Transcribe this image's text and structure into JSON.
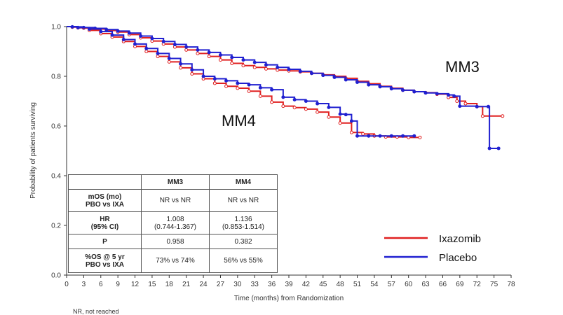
{
  "chart_data": {
    "type": "line",
    "xlabel": "Time (months) from Randomization",
    "ylabel": "Probability of patients surviving",
    "xlim": [
      0,
      78
    ],
    "ylim": [
      0,
      1.0
    ],
    "xticks": [
      0,
      3,
      6,
      9,
      12,
      15,
      18,
      21,
      24,
      27,
      30,
      33,
      36,
      39,
      42,
      45,
      48,
      51,
      54,
      57,
      60,
      63,
      66,
      69,
      72,
      75,
      78
    ],
    "yticks": [
      0.0,
      0.2,
      0.4,
      0.6,
      0.8,
      1.0
    ],
    "ytick_labels": [
      "0.0",
      "0.2",
      "0.4",
      "0.6",
      "0.8",
      "1.0"
    ],
    "annotations": [
      "MM3",
      "MM4"
    ],
    "legend": [
      {
        "name": "Ixazomib",
        "color": "#e02020"
      },
      {
        "name": "Placebo",
        "color": "#2020d0"
      }
    ],
    "series": [
      {
        "name": "MM3 Ixazomib",
        "color": "#e02020",
        "x": [
          0,
          1,
          3,
          5,
          7,
          9,
          11,
          13,
          15,
          17,
          19,
          21,
          23,
          25,
          27,
          29,
          31,
          33,
          35,
          37,
          39,
          41,
          43,
          45,
          47,
          49,
          51,
          53,
          55,
          57,
          59,
          61,
          63,
          65,
          67,
          68.5,
          70,
          72,
          73,
          76.5
        ],
        "y": [
          1.0,
          0.998,
          0.994,
          0.99,
          0.984,
          0.978,
          0.968,
          0.955,
          0.942,
          0.93,
          0.918,
          0.906,
          0.892,
          0.88,
          0.866,
          0.852,
          0.843,
          0.836,
          0.83,
          0.825,
          0.822,
          0.818,
          0.812,
          0.806,
          0.8,
          0.792,
          0.78,
          0.77,
          0.76,
          0.752,
          0.744,
          0.738,
          0.734,
          0.728,
          0.715,
          0.7,
          0.69,
          0.678,
          0.64,
          0.64
        ]
      },
      {
        "name": "MM3 Placebo",
        "color": "#2020d0",
        "x": [
          0,
          1,
          3,
          5,
          7,
          9,
          11,
          13,
          15,
          17,
          19,
          21,
          23,
          25,
          27,
          29,
          31,
          33,
          35,
          37,
          39,
          41,
          43,
          45,
          47,
          49,
          51,
          53,
          55,
          57,
          59,
          61,
          63,
          65,
          67,
          68,
          69,
          72,
          74,
          74.2,
          75.8
        ],
        "y": [
          1.0,
          0.999,
          0.996,
          0.993,
          0.988,
          0.982,
          0.974,
          0.962,
          0.952,
          0.94,
          0.928,
          0.918,
          0.906,
          0.896,
          0.886,
          0.876,
          0.866,
          0.856,
          0.846,
          0.836,
          0.828,
          0.82,
          0.812,
          0.804,
          0.796,
          0.786,
          0.776,
          0.766,
          0.758,
          0.75,
          0.744,
          0.738,
          0.733,
          0.73,
          0.725,
          0.72,
          0.68,
          0.678,
          0.678,
          0.51,
          0.51
        ]
      },
      {
        "name": "MM4 Ixazomib",
        "color": "#e02020",
        "x": [
          0,
          2,
          4,
          6,
          8,
          10,
          12,
          14,
          16,
          18,
          20,
          22,
          24,
          26,
          28,
          30,
          32,
          34,
          36,
          38,
          40,
          42,
          44,
          46,
          48,
          50,
          52,
          54,
          56,
          58,
          60,
          62
        ],
        "y": [
          1.0,
          0.995,
          0.985,
          0.972,
          0.958,
          0.94,
          0.92,
          0.9,
          0.88,
          0.858,
          0.834,
          0.81,
          0.79,
          0.772,
          0.76,
          0.752,
          0.74,
          0.72,
          0.696,
          0.68,
          0.674,
          0.668,
          0.656,
          0.636,
          0.612,
          0.574,
          0.568,
          0.56,
          0.556,
          0.556,
          0.554,
          0.554
        ]
      },
      {
        "name": "MM4 Placebo",
        "color": "#2020d0",
        "x": [
          0,
          2,
          4,
          6,
          8,
          10,
          12,
          14,
          16,
          18,
          20,
          22,
          24,
          26,
          28,
          30,
          32,
          34,
          36,
          38,
          40,
          42,
          44,
          46,
          48,
          49,
          50,
          51,
          53,
          55,
          57,
          59,
          61
        ],
        "y": [
          1.0,
          0.996,
          0.99,
          0.98,
          0.966,
          0.948,
          0.93,
          0.912,
          0.892,
          0.872,
          0.85,
          0.826,
          0.8,
          0.79,
          0.782,
          0.772,
          0.766,
          0.754,
          0.746,
          0.716,
          0.706,
          0.7,
          0.69,
          0.675,
          0.648,
          0.646,
          0.62,
          0.56,
          0.56,
          0.56,
          0.56,
          0.56,
          0.56
        ]
      }
    ]
  },
  "table": {
    "headers": [
      "",
      "MM3",
      "MM4"
    ],
    "rows": [
      {
        "label_line1": "mOS (mo)",
        "label_line2": "PBO vs IXA",
        "mm3_line1": "NR vs NR",
        "mm3_line2": "",
        "mm4_line1": "NR vs NR",
        "mm4_line2": ""
      },
      {
        "label_line1": "HR",
        "label_line2": "(95% CI)",
        "mm3_line1": "1.008",
        "mm3_line2": "(0.744-1.367)",
        "mm4_line1": "1.136",
        "mm4_line2": "(0.853-1.514)"
      },
      {
        "label_line1": "P",
        "label_line2": "",
        "mm3_line1": "0.958",
        "mm3_line2": "",
        "mm4_line1": "0.382",
        "mm4_line2": ""
      },
      {
        "label_line1": "%OS @ 5 yr",
        "label_line2": "PBO vs IXA",
        "mm3_line1": "73% vs 74%",
        "mm3_line2": "",
        "mm4_line1": "56% vs 55%",
        "mm4_line2": ""
      }
    ]
  },
  "footnote": "NR, not reached"
}
